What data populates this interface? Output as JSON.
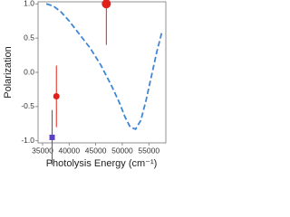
{
  "chart_data": {
    "type": "line",
    "x_label": "Photolysis Energy (cm⁻¹)",
    "y_label": "Polarization",
    "xlim": [
      34150,
      58200
    ],
    "xticks": [
      35000,
      40000,
      45000,
      50000,
      55000
    ],
    "ylim": [
      -1.03,
      1.03
    ],
    "yticks": [
      {
        "value": -1.0,
        "label": "-1.0"
      },
      -0.5,
      {
        "value": 0.0,
        "label": "0.0"
      },
      0.5,
      {
        "value": 1.0,
        "label": "1.0"
      }
    ],
    "series": [
      {
        "type": "line",
        "color": "#3f86d6",
        "x": [
          35700,
          37000,
          38500,
          40000,
          42000,
          44000,
          46000,
          48000,
          49500,
          50500,
          51500,
          52500,
          53500,
          54500,
          55500,
          56500,
          57500
        ],
        "values": [
          1.0,
          0.97,
          0.88,
          0.75,
          0.55,
          0.35,
          0.1,
          -0.2,
          -0.45,
          -0.65,
          -0.8,
          -0.83,
          -0.7,
          -0.4,
          -0.05,
          0.3,
          0.6
        ]
      },
      {
        "type": "scatter",
        "marker": "circle",
        "color": "#e0201b",
        "x": [
          47000,
          37600
        ],
        "values": [
          1.0,
          -0.35
        ],
        "errors": [
          0.6,
          0.45
        ],
        "sizes": [
          5,
          3.5
        ]
      },
      {
        "type": "scatter",
        "marker": "square",
        "color": "#5b3fc4",
        "x": [
          36800
        ],
        "values": [
          -0.95
        ],
        "errors": [
          0.4
        ],
        "sizes": [
          3
        ]
      }
    ]
  }
}
